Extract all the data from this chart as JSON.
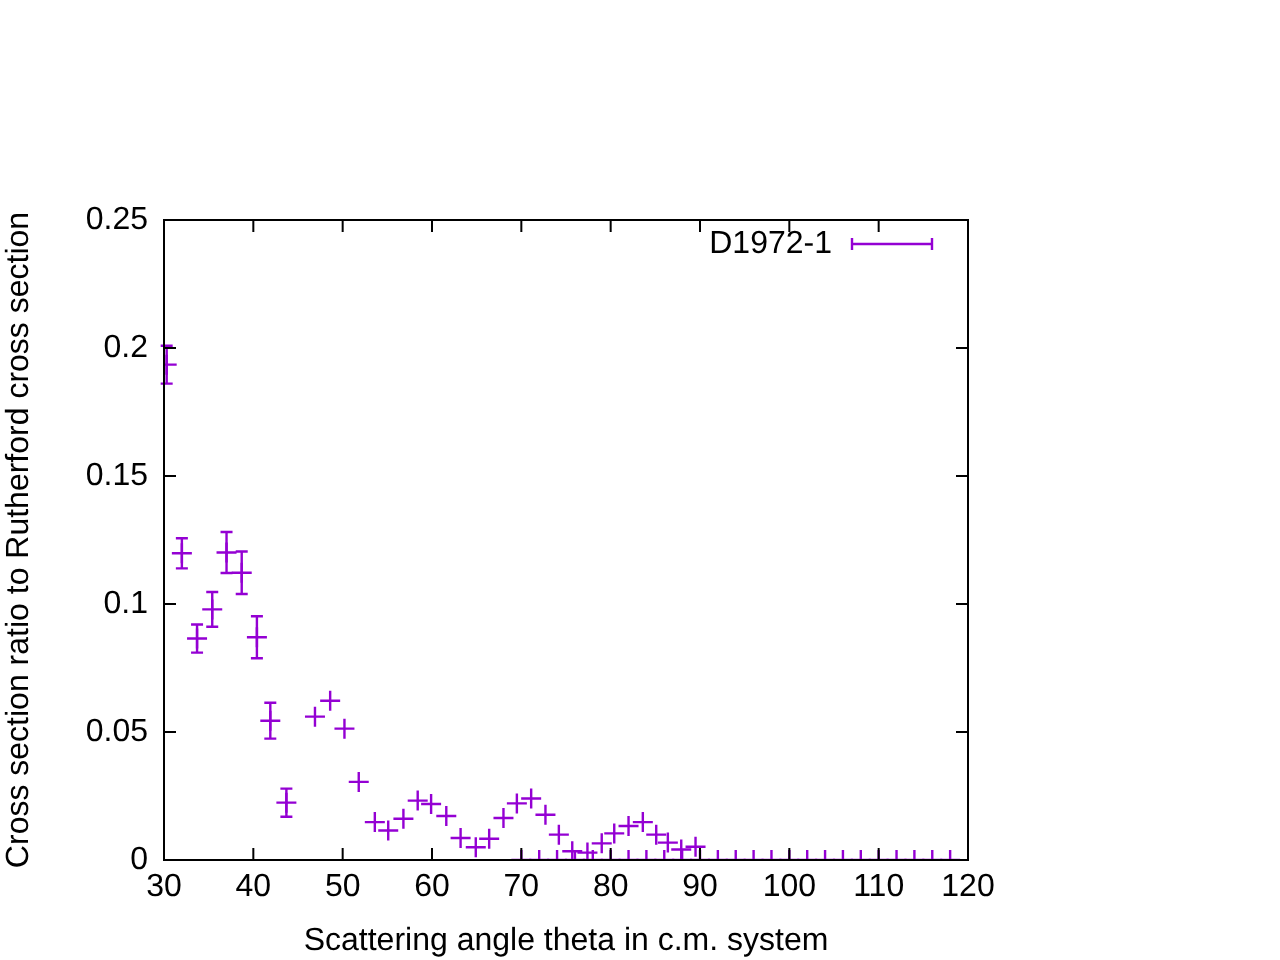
{
  "chart_data": {
    "type": "scatter",
    "xlabel": "Scattering angle theta in c.m. system",
    "ylabel": "Cross section ratio to Rutherford cross section",
    "xlim": [
      30,
      120
    ],
    "xticks": [
      30,
      40,
      50,
      60,
      70,
      80,
      90,
      100,
      110,
      120
    ],
    "ylim": [
      0,
      0.25
    ],
    "yticks": [
      0,
      0.05,
      0.1,
      0.15,
      0.2,
      0.25
    ],
    "grid": false,
    "legend": "top right",
    "marker": "cross",
    "series": [
      {
        "name": "D1972-1",
        "color": "#9400d3",
        "x": [
          30.3,
          32.0,
          33.7,
          35.4,
          37.0,
          38.7,
          40.4,
          41.9,
          43.7,
          46.9,
          48.6,
          50.2,
          51.8,
          53.6,
          55.1,
          56.8,
          58.4,
          59.9,
          61.6,
          63.2,
          64.9,
          66.4,
          68.0,
          69.5,
          70,
          71.1,
          72,
          72.7,
          74,
          74.2,
          75.7,
          76,
          77.4,
          78,
          79.0,
          80,
          80.4,
          82.0,
          82,
          83.6,
          84,
          85.1,
          86,
          86.4,
          87.9,
          88,
          89.5,
          90,
          92,
          94,
          96,
          98,
          100,
          102,
          104,
          106,
          108,
          110,
          112,
          114,
          116,
          118
        ],
        "values": [
          0.1935,
          0.1198,
          0.0865,
          0.0979,
          0.1201,
          0.1122,
          0.087,
          0.0544,
          0.0224,
          0.056,
          0.0622,
          0.0513,
          0.0305,
          0.0148,
          0.0115,
          0.0161,
          0.0232,
          0.0219,
          0.0172,
          0.0086,
          0.005,
          0.0083,
          0.0164,
          0.0221,
          0,
          0.024,
          0,
          0.0177,
          0,
          0.0099,
          0.0034,
          0,
          0.0029,
          0,
          0.0065,
          0,
          0.0104,
          0.0133,
          0,
          0.0148,
          0,
          0.0099,
          0,
          0.0068,
          0.0041,
          0,
          0.0052,
          0,
          0,
          0,
          0,
          0,
          0,
          0,
          0,
          0,
          0,
          0,
          0,
          0,
          0,
          0
        ],
        "errors": [
          0.0074,
          0.0059,
          0.0055,
          0.0068,
          0.008,
          0.0083,
          0.0082,
          0.007,
          0.0055,
          null,
          null,
          null,
          null,
          null,
          null,
          null,
          null,
          null,
          null,
          null,
          null,
          null,
          null,
          null,
          null,
          null,
          null,
          null,
          null,
          null,
          null,
          null,
          null,
          null,
          null,
          null,
          null,
          null,
          null,
          null,
          null,
          null,
          null,
          null,
          null,
          null,
          null,
          null,
          null,
          null,
          null,
          null,
          null,
          null,
          null,
          null,
          null,
          null,
          null,
          null,
          null,
          null
        ]
      }
    ]
  }
}
